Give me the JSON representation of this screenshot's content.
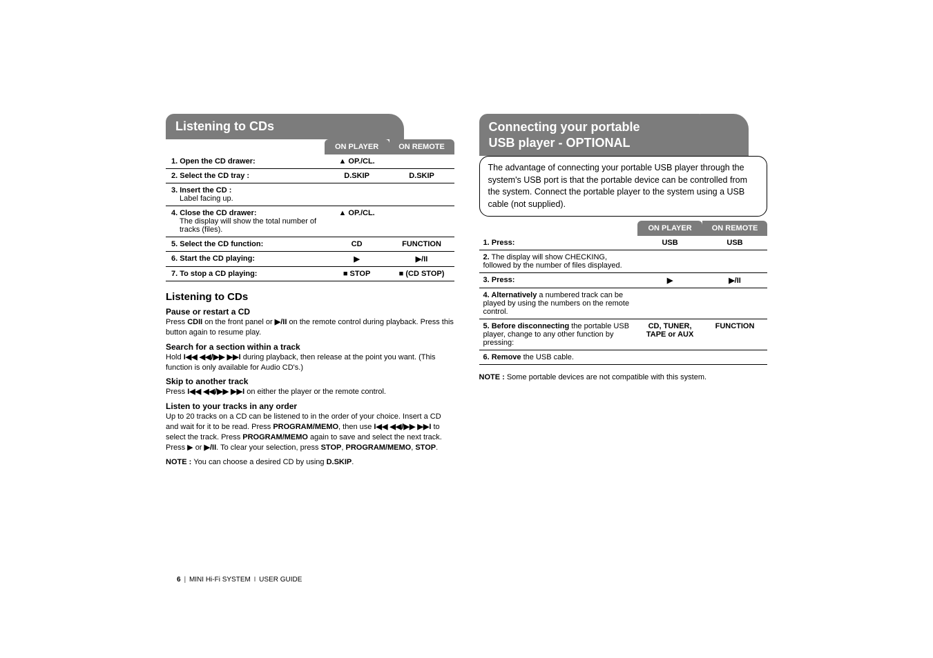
{
  "left": {
    "header": "Listening to CDs",
    "col1": "ON PLAYER",
    "col2": "ON REMOTE",
    "rows": [
      {
        "label": "1. Open the CD drawer:",
        "p": "▲ OP./CL.",
        "r": ""
      },
      {
        "label": "2. Select the CD tray :",
        "p": "D.SKIP",
        "r": "D.SKIP"
      },
      {
        "label": "3. Insert the CD :",
        "sub": "Label facing up.",
        "p": "",
        "r": ""
      },
      {
        "label": "4. Close the CD drawer:",
        "sub": "The display will show the total number of tracks (files).",
        "p": "▲ OP./CL.",
        "r": ""
      },
      {
        "label": "5. Select the CD function:",
        "p": "CD",
        "r": "FUNCTION"
      },
      {
        "label": "6. Start the CD playing:",
        "p": "▶",
        "r": "▶/II"
      },
      {
        "label": "7. To stop a CD playing:",
        "p": "■ STOP",
        "r": "■ (CD STOP)"
      }
    ],
    "subtitle": "Listening to CDs",
    "s1h": "Pause or restart a CD",
    "s1t1": "Press ",
    "s1b1": "CDII",
    "s1t2": " on the front panel or ",
    "s1b2": "▶/II",
    "s1t3": " on the remote control during playback. Press this button again to resume play.",
    "s2h": "Search for a section within a track",
    "s2t1": "Hold ",
    "s2b1": "I◀◀ ◀◀/▶▶ ▶▶I",
    "s2t2": " during playback, then release at the point you want. (This function is only available for Audio CD's.)",
    "s3h": "Skip to another track",
    "s3t1": "Press ",
    "s3b1": "I◀◀ ◀◀/▶▶ ▶▶I",
    "s3t2": " on either the player or the remote control.",
    "s4h": "Listen to your tracks in any order",
    "s4t1": "Up to 20 tracks on a CD can be listened to in the order of your choice. Insert a CD and wait for it to be read. Press ",
    "s4b1": "PROGRAM/MEMO",
    "s4t2": ", then use ",
    "s4b2": "I◀◀ ◀◀/▶▶ ▶▶I",
    "s4t3": " to select the track. Press ",
    "s4b3": "PROGRAM/MEMO",
    "s4t4": " again to save and select the next track. Press ▶ or ",
    "s4b4": "▶/II",
    "s4t5": ". To clear your selection, press ",
    "s4b5": "STOP",
    "s4t6": ", ",
    "s4b6": "PROGRAM/MEMO",
    "s4t7": ", ",
    "s4b7": "STOP",
    "s4t8": ".",
    "note_label": "NOTE : ",
    "note_text": "You can choose a desired CD by using ",
    "note_bold": "D.SKIP",
    "note_end": "."
  },
  "right": {
    "header_l1": "Connecting your portable",
    "header_l2": "USB player - OPTIONAL",
    "intro": "The advantage of connecting your portable USB player through the system's USB port is that the portable device can be controlled from the system. Connect the portable player to the system using a USB cable (not supplied).",
    "col1": "ON PLAYER",
    "col2": "ON REMOTE",
    "rows": [
      {
        "label": "1. Press:",
        "p": "USB",
        "r": "USB"
      },
      {
        "label": "2.",
        "post": " The display will show CHECKING, followed by the number of files displayed.",
        "p": "",
        "r": ""
      },
      {
        "label": "3. Press:",
        "p": "▶",
        "r": "▶/II"
      },
      {
        "label": "4. Alternatively",
        "post": " a numbered track can be played by using the numbers on the remote control.",
        "p": "",
        "r": ""
      },
      {
        "label": "5. Before disconnecting",
        "post": " the portable USB player, change to any other function by pressing:",
        "p": "CD, TUNER, TAPE or AUX",
        "r": "FUNCTION"
      },
      {
        "label": "6. Remove",
        "post": " the USB cable.",
        "p": "",
        "r": ""
      }
    ],
    "note_label": "NOTE : ",
    "note_text": "Some portable devices are not compatible with this system."
  },
  "footer": {
    "page": "6",
    "title": "MINI Hi-Fi SYSTEM ",
    "guide": "USER GUIDE"
  }
}
